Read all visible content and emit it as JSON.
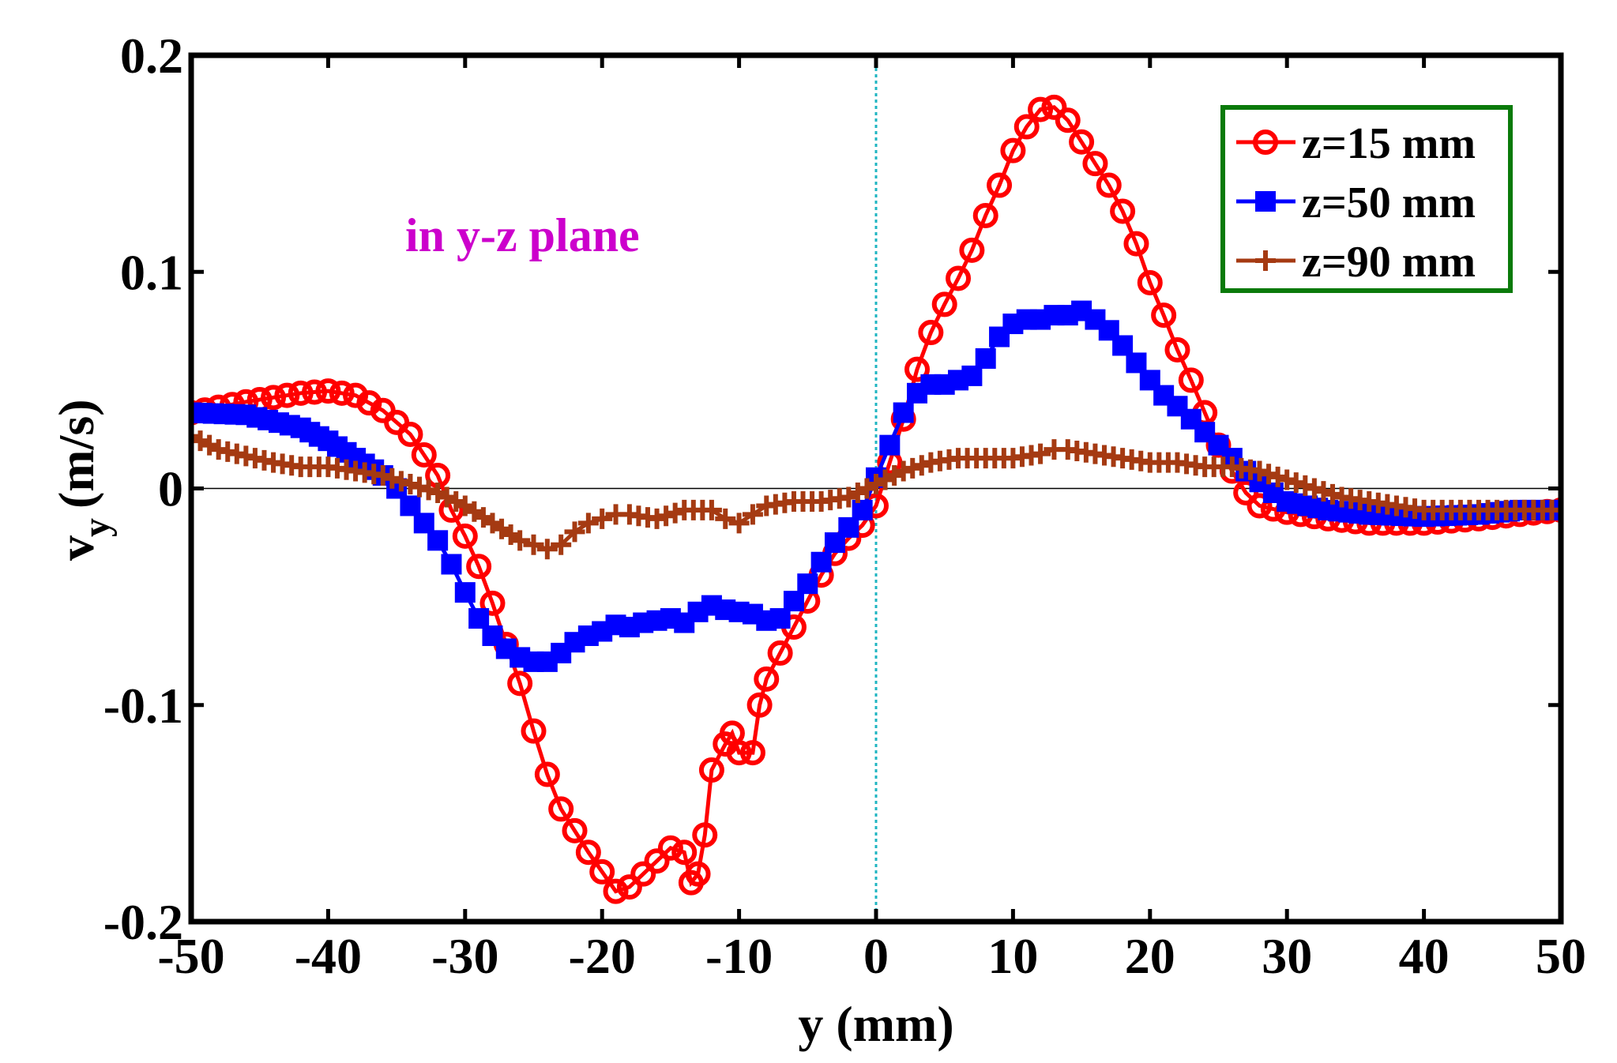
{
  "chart_data": {
    "type": "line",
    "annotation": "in y-z plane",
    "xlabel": "y (mm)",
    "ylabel_main": "v",
    "ylabel_sub": "y",
    "ylabel_unit": "(m/s)",
    "xlim": [
      -50,
      50
    ],
    "ylim": [
      -0.2,
      0.2
    ],
    "xticks": [
      -50,
      -40,
      -30,
      -20,
      -10,
      0,
      10,
      20,
      30,
      40,
      50
    ],
    "xtick_labels": [
      "-50",
      "-40",
      "-30",
      "-20",
      "-10",
      "0",
      "10",
      "20",
      "30",
      "40",
      "50"
    ],
    "yticks": [
      -0.2,
      -0.1,
      0,
      0.1,
      0.2
    ],
    "ytick_labels": [
      "-0.2",
      "-0.1",
      "0",
      "0.1",
      "0.2"
    ],
    "grid": false,
    "legend_position": "top-right",
    "legend_border_color": "#0a7a0a",
    "zero_line_color": "#000000",
    "center_line_color": "#1fb5c2",
    "series": [
      {
        "name": "z=15 mm",
        "color": "#ff0000",
        "marker": "circle",
        "points": [
          [
            -50,
            0.035
          ],
          [
            -46,
            0.04
          ],
          [
            -42,
            0.044
          ],
          [
            -40,
            0.045
          ],
          [
            -38,
            0.043
          ],
          [
            -36,
            0.036
          ],
          [
            -34,
            0.025
          ],
          [
            -32,
            0.006
          ],
          [
            -31,
            -0.01
          ],
          [
            -30,
            -0.022
          ],
          [
            -29,
            -0.036
          ],
          [
            -28,
            -0.053
          ],
          [
            -27,
            -0.072
          ],
          [
            -26,
            -0.09
          ],
          [
            -25,
            -0.112
          ],
          [
            -24,
            -0.132
          ],
          [
            -23,
            -0.148
          ],
          [
            -22,
            -0.158
          ],
          [
            -21,
            -0.168
          ],
          [
            -20,
            -0.177
          ],
          [
            -19,
            -0.186
          ],
          [
            -18,
            -0.184
          ],
          [
            -17,
            -0.178
          ],
          [
            -16,
            -0.172
          ],
          [
            -15,
            -0.166
          ],
          [
            -14,
            -0.168
          ],
          [
            -13.5,
            -0.182
          ],
          [
            -13,
            -0.178
          ],
          [
            -12.5,
            -0.16
          ],
          [
            -12,
            -0.13
          ],
          [
            -11,
            -0.118
          ],
          [
            -10.5,
            -0.113
          ],
          [
            -10,
            -0.122
          ],
          [
            -9,
            -0.122
          ],
          [
            -8.5,
            -0.1
          ],
          [
            -8,
            -0.088
          ],
          [
            -7,
            -0.076
          ],
          [
            -6,
            -0.064
          ],
          [
            -5,
            -0.052
          ],
          [
            -4,
            -0.04
          ],
          [
            -3,
            -0.03
          ],
          [
            -2,
            -0.023
          ],
          [
            -1,
            -0.017
          ],
          [
            0,
            -0.008
          ],
          [
            1,
            0.012
          ],
          [
            2,
            0.032
          ],
          [
            3,
            0.055
          ],
          [
            4,
            0.072
          ],
          [
            5,
            0.085
          ],
          [
            6,
            0.097
          ],
          [
            7,
            0.11
          ],
          [
            8,
            0.126
          ],
          [
            9,
            0.14
          ],
          [
            10,
            0.156
          ],
          [
            11,
            0.167
          ],
          [
            12,
            0.175
          ],
          [
            13,
            0.176
          ],
          [
            14,
            0.17
          ],
          [
            15,
            0.16
          ],
          [
            16,
            0.15
          ],
          [
            17,
            0.14
          ],
          [
            18,
            0.128
          ],
          [
            19,
            0.113
          ],
          [
            20,
            0.095
          ],
          [
            21,
            0.08
          ],
          [
            22,
            0.064
          ],
          [
            23,
            0.05
          ],
          [
            24,
            0.035
          ],
          [
            25,
            0.02
          ],
          [
            26,
            0.008
          ],
          [
            27,
            -0.002
          ],
          [
            28,
            -0.008
          ],
          [
            30,
            -0.011
          ],
          [
            33,
            -0.014
          ],
          [
            36,
            -0.016
          ],
          [
            40,
            -0.016
          ],
          [
            44,
            -0.014
          ],
          [
            47,
            -0.012
          ],
          [
            50,
            -0.01
          ]
        ]
      },
      {
        "name": "z=50 mm",
        "color": "#0000ff",
        "marker": "square",
        "points": [
          [
            -50,
            0.035
          ],
          [
            -46,
            0.034
          ],
          [
            -42,
            0.028
          ],
          [
            -40,
            0.022
          ],
          [
            -38,
            0.014
          ],
          [
            -36,
            0.006
          ],
          [
            -35,
            0.0
          ],
          [
            -34,
            -0.008
          ],
          [
            -33,
            -0.016
          ],
          [
            -32,
            -0.024
          ],
          [
            -31,
            -0.035
          ],
          [
            -30,
            -0.048
          ],
          [
            -29,
            -0.06
          ],
          [
            -28,
            -0.068
          ],
          [
            -27,
            -0.074
          ],
          [
            -26,
            -0.078
          ],
          [
            -25,
            -0.08
          ],
          [
            -24,
            -0.08
          ],
          [
            -23,
            -0.076
          ],
          [
            -22,
            -0.071
          ],
          [
            -21,
            -0.068
          ],
          [
            -20,
            -0.066
          ],
          [
            -19,
            -0.063
          ],
          [
            -18,
            -0.064
          ],
          [
            -17,
            -0.062
          ],
          [
            -16,
            -0.061
          ],
          [
            -15,
            -0.06
          ],
          [
            -14,
            -0.062
          ],
          [
            -13,
            -0.057
          ],
          [
            -12,
            -0.054
          ],
          [
            -11,
            -0.056
          ],
          [
            -10,
            -0.057
          ],
          [
            -9,
            -0.058
          ],
          [
            -8,
            -0.061
          ],
          [
            -7,
            -0.06
          ],
          [
            -6,
            -0.052
          ],
          [
            -5,
            -0.044
          ],
          [
            -4,
            -0.034
          ],
          [
            -3,
            -0.025
          ],
          [
            -2,
            -0.018
          ],
          [
            -1,
            -0.01
          ],
          [
            0,
            0.005
          ],
          [
            1,
            0.02
          ],
          [
            2,
            0.035
          ],
          [
            3,
            0.044
          ],
          [
            4,
            0.048
          ],
          [
            5,
            0.048
          ],
          [
            6,
            0.05
          ],
          [
            7,
            0.052
          ],
          [
            8,
            0.06
          ],
          [
            9,
            0.07
          ],
          [
            10,
            0.076
          ],
          [
            11,
            0.078
          ],
          [
            12,
            0.078
          ],
          [
            13,
            0.08
          ],
          [
            14,
            0.08
          ],
          [
            15,
            0.082
          ],
          [
            16,
            0.078
          ],
          [
            17,
            0.073
          ],
          [
            18,
            0.066
          ],
          [
            19,
            0.058
          ],
          [
            20,
            0.05
          ],
          [
            21,
            0.043
          ],
          [
            22,
            0.038
          ],
          [
            23,
            0.032
          ],
          [
            24,
            0.026
          ],
          [
            25,
            0.02
          ],
          [
            26,
            0.014
          ],
          [
            27,
            0.008
          ],
          [
            28,
            0.003
          ],
          [
            29,
            -0.002
          ],
          [
            30,
            -0.006
          ],
          [
            33,
            -0.01
          ],
          [
            36,
            -0.012
          ],
          [
            40,
            -0.013
          ],
          [
            44,
            -0.012
          ],
          [
            47,
            -0.01
          ],
          [
            50,
            -0.01
          ]
        ]
      },
      {
        "name": "z=90 mm",
        "color": "#a53a12",
        "marker": "plus",
        "points": [
          [
            -50,
            0.024
          ],
          [
            -48,
            0.018
          ],
          [
            -46,
            0.015
          ],
          [
            -44,
            0.012
          ],
          [
            -42,
            0.01
          ],
          [
            -40,
            0.01
          ],
          [
            -38,
            0.008
          ],
          [
            -36,
            0.006
          ],
          [
            -34,
            0.002
          ],
          [
            -32,
            -0.002
          ],
          [
            -30,
            -0.008
          ],
          [
            -28,
            -0.016
          ],
          [
            -26,
            -0.024
          ],
          [
            -25,
            -0.026
          ],
          [
            -24,
            -0.028
          ],
          [
            -23,
            -0.026
          ],
          [
            -22,
            -0.02
          ],
          [
            -21,
            -0.016
          ],
          [
            -20,
            -0.014
          ],
          [
            -19,
            -0.012
          ],
          [
            -18,
            -0.012
          ],
          [
            -16,
            -0.014
          ],
          [
            -14,
            -0.01
          ],
          [
            -12,
            -0.01
          ],
          [
            -11,
            -0.014
          ],
          [
            -10,
            -0.016
          ],
          [
            -9,
            -0.012
          ],
          [
            -8,
            -0.008
          ],
          [
            -6,
            -0.006
          ],
          [
            -4,
            -0.006
          ],
          [
            -2,
            -0.004
          ],
          [
            0,
            0.002
          ],
          [
            2,
            0.008
          ],
          [
            4,
            0.012
          ],
          [
            6,
            0.014
          ],
          [
            8,
            0.014
          ],
          [
            10,
            0.014
          ],
          [
            12,
            0.016
          ],
          [
            13,
            0.018
          ],
          [
            14,
            0.018
          ],
          [
            16,
            0.016
          ],
          [
            18,
            0.014
          ],
          [
            20,
            0.012
          ],
          [
            22,
            0.012
          ],
          [
            24,
            0.01
          ],
          [
            26,
            0.01
          ],
          [
            28,
            0.008
          ],
          [
            30,
            0.004
          ],
          [
            32,
            0.0
          ],
          [
            34,
            -0.004
          ],
          [
            36,
            -0.006
          ],
          [
            38,
            -0.008
          ],
          [
            40,
            -0.01
          ],
          [
            42,
            -0.01
          ],
          [
            44,
            -0.01
          ],
          [
            46,
            -0.01
          ],
          [
            48,
            -0.01
          ],
          [
            50,
            -0.01
          ]
        ]
      }
    ]
  }
}
